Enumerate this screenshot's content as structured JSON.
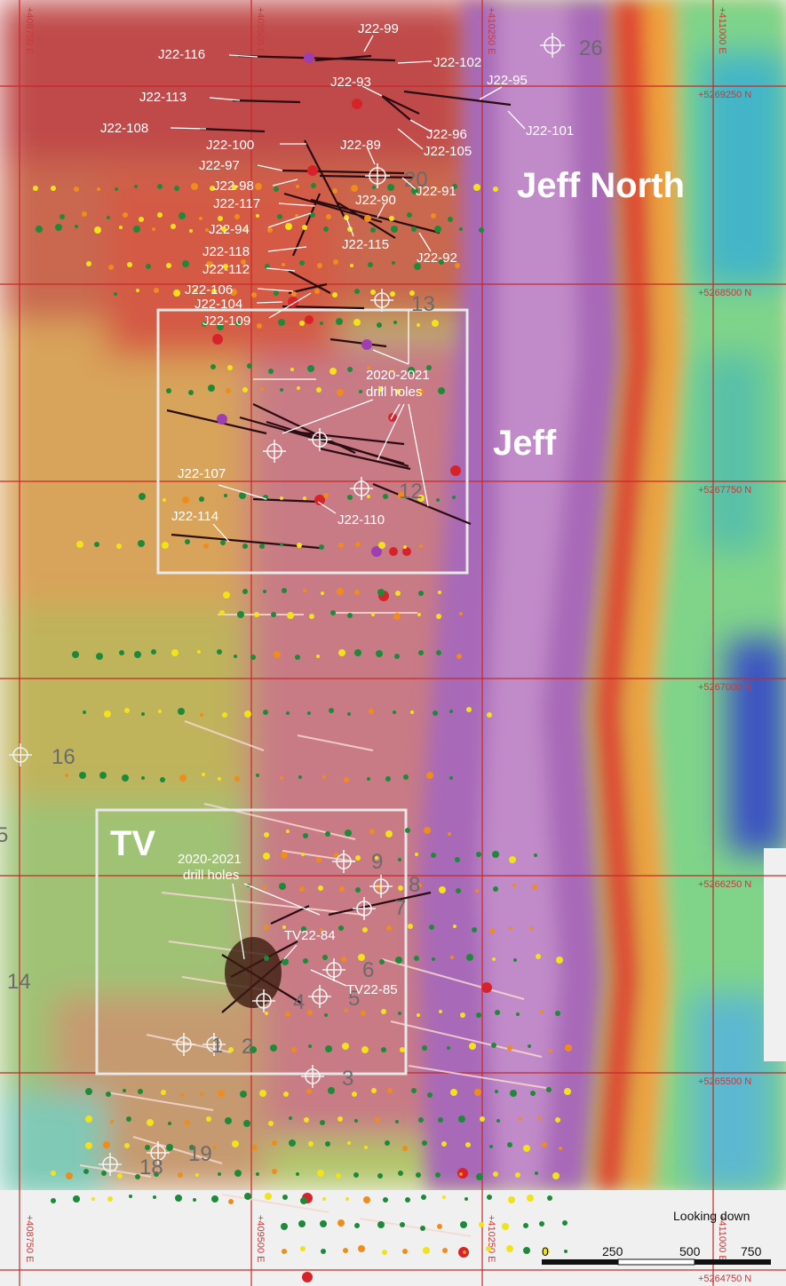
{
  "map": {
    "areas": [
      "Jeff North",
      "Jeff",
      "TV"
    ],
    "callouts": [
      "2020-2021\ndrill holes",
      "2020-2021\ndrill holes"
    ],
    "view_label": "Looking down",
    "scale": {
      "ticks": [
        "0",
        "250",
        "500",
        "750"
      ]
    },
    "eastings": [
      "+408750 E",
      "+409500 E",
      "+410250 E",
      "+411000 E"
    ],
    "northings": [
      "+5269250 N",
      "+5268500 N",
      "+5267750 N",
      "+5267000 N",
      "+5266250 N",
      "+5265500 N",
      "+5264750 N"
    ],
    "hole_labels": [
      "J22-99",
      "J22-116",
      "J22-102",
      "J22-93",
      "J22-95",
      "J22-113",
      "J22-108",
      "J22-96",
      "J22-105",
      "J22-101",
      "J22-100",
      "J22-89",
      "J22-97",
      "J22-98",
      "J22-91",
      "J22-90",
      "J22-117",
      "J22-94",
      "J22-115",
      "J22-92",
      "J22-118",
      "J22-112",
      "J22-106",
      "J22-104",
      "J22-109",
      "J22-107",
      "J22-110",
      "J22-114",
      "TV22-84",
      "TV22-85"
    ],
    "numbers": [
      "26",
      "20",
      "13",
      "12",
      "16",
      "5",
      "14",
      "9",
      "8",
      "7",
      "6",
      "5",
      "4",
      "2",
      "1",
      "3",
      "19",
      "18"
    ],
    "colors": {
      "line": "#2a0d12",
      "red": "#d8222a",
      "purple": "#9d3fb3",
      "orange": "#f08c1a",
      "yellow": "#f2e21a",
      "green": "#1d8a3a"
    }
  }
}
